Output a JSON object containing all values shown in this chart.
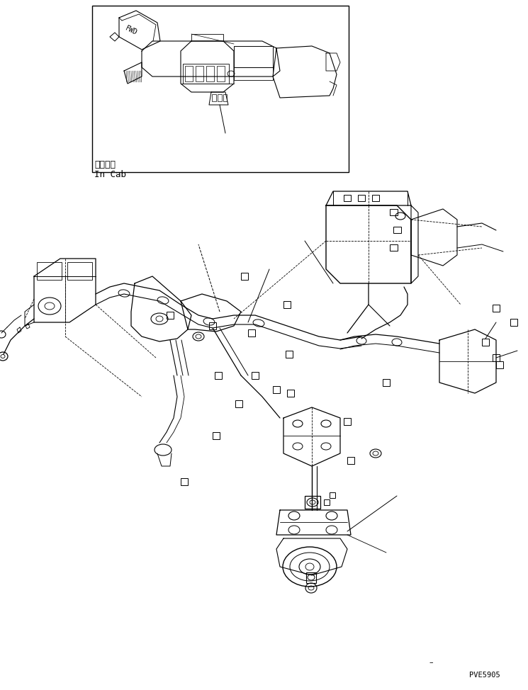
{
  "bg_color": "#ffffff",
  "line_color": "#000000",
  "box_label_jp": "キャブ内",
  "box_label_en": "In Cab",
  "part_code": "PVE5905",
  "fig_width": 7.45,
  "fig_height": 9.74
}
